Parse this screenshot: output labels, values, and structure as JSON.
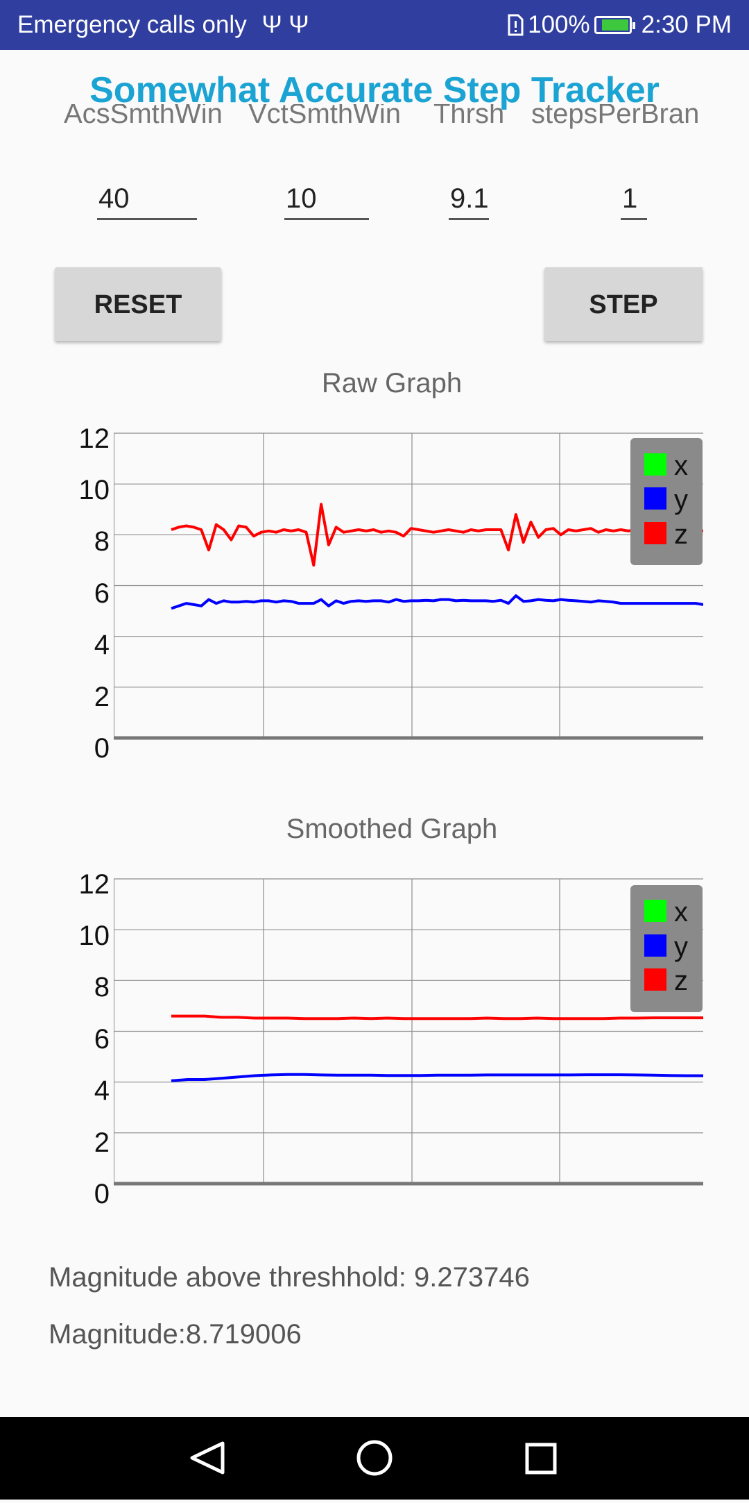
{
  "status": {
    "left_text": "Emergency calls only",
    "usb_icons": "Ψ Ψ",
    "battery_percent": "100%",
    "time": "2:30 PM"
  },
  "app": {
    "title": "Somewhat Accurate Step Tracker"
  },
  "settings": {
    "headers": [
      "AcsSmthWin",
      "VctSmthWin",
      "Thrsh",
      "stepsPerBran"
    ],
    "values": [
      "40",
      "10",
      "9.1",
      "1"
    ]
  },
  "buttons": {
    "reset": "RESET",
    "step": "STEP"
  },
  "legend": [
    "x",
    "y",
    "z"
  ],
  "colors": {
    "x": "#00ff00",
    "y": "#0000ff",
    "z": "#ff0000"
  },
  "chart_data": [
    {
      "type": "line",
      "title": "Raw Graph",
      "yticks": [
        "0",
        "2",
        "4",
        "6",
        "8",
        "10",
        "12"
      ],
      "ylim": [
        0,
        12
      ],
      "grid": true,
      "legend": "top-right",
      "series": [
        {
          "name": "y",
          "values": [
            5.1,
            5.2,
            5.3,
            5.25,
            5.2,
            5.45,
            5.3,
            5.4,
            5.35,
            5.35,
            5.38,
            5.35,
            5.4,
            5.4,
            5.35,
            5.4,
            5.38,
            5.3,
            5.3,
            5.3,
            5.45,
            5.2,
            5.4,
            5.3,
            5.38,
            5.4,
            5.38,
            5.4,
            5.4,
            5.35,
            5.45,
            5.38,
            5.4,
            5.4,
            5.42,
            5.4,
            5.45,
            5.45,
            5.4,
            5.42,
            5.4,
            5.4,
            5.4,
            5.38,
            5.42,
            5.3,
            5.6,
            5.38,
            5.4,
            5.45,
            5.42,
            5.4,
            5.45,
            5.42,
            5.4,
            5.38,
            5.35,
            5.4,
            5.38,
            5.35,
            5.3,
            5.3,
            5.3,
            5.3,
            5.3,
            5.3,
            5.3,
            5.3,
            5.3,
            5.3,
            5.3,
            5.25
          ]
        },
        {
          "name": "z",
          "values": [
            8.2,
            8.3,
            8.35,
            8.3,
            8.2,
            7.4,
            8.4,
            8.2,
            7.8,
            8.35,
            8.3,
            7.95,
            8.1,
            8.15,
            8.1,
            8.2,
            8.15,
            8.2,
            8.1,
            6.8,
            9.2,
            7.6,
            8.3,
            8.1,
            8.15,
            8.2,
            8.15,
            8.2,
            8.1,
            8.15,
            8.1,
            7.95,
            8.25,
            8.2,
            8.15,
            8.1,
            8.15,
            8.2,
            8.15,
            8.1,
            8.2,
            8.15,
            8.2,
            8.2,
            8.2,
            7.4,
            8.8,
            7.7,
            8.5,
            7.9,
            8.2,
            8.25,
            8.0,
            8.2,
            8.15,
            8.2,
            8.25,
            8.1,
            8.2,
            8.15,
            8.2,
            8.15,
            8.2,
            8.1,
            8.2,
            8.15,
            8.2,
            8.15,
            8.2,
            8.1,
            8.15,
            8.15
          ]
        }
      ]
    },
    {
      "type": "line",
      "title": "Smoothed Graph",
      "yticks": [
        "0",
        "2",
        "4",
        "6",
        "8",
        "10",
        "12"
      ],
      "ylim": [
        0,
        12
      ],
      "grid": true,
      "legend": "top-right",
      "series": [
        {
          "name": "y",
          "values": [
            4.05,
            4.1,
            4.1,
            4.15,
            4.2,
            4.25,
            4.28,
            4.3,
            4.3,
            4.28,
            4.27,
            4.27,
            4.27,
            4.26,
            4.26,
            4.26,
            4.27,
            4.27,
            4.27,
            4.28,
            4.28,
            4.28,
            4.28,
            4.28,
            4.28,
            4.29,
            4.29,
            4.29,
            4.28,
            4.27,
            4.26,
            4.25,
            4.25
          ]
        },
        {
          "name": "z",
          "values": [
            6.6,
            6.6,
            6.6,
            6.55,
            6.55,
            6.52,
            6.52,
            6.52,
            6.5,
            6.5,
            6.5,
            6.52,
            6.5,
            6.52,
            6.5,
            6.5,
            6.5,
            6.5,
            6.5,
            6.52,
            6.5,
            6.5,
            6.52,
            6.5,
            6.5,
            6.5,
            6.5,
            6.52,
            6.52,
            6.53,
            6.53,
            6.53,
            6.53
          ]
        }
      ]
    }
  ],
  "summary": {
    "magnitude_above": "Magnitude above threshhold: 9.273746",
    "magnitude": "Magnitude:8.719006"
  }
}
